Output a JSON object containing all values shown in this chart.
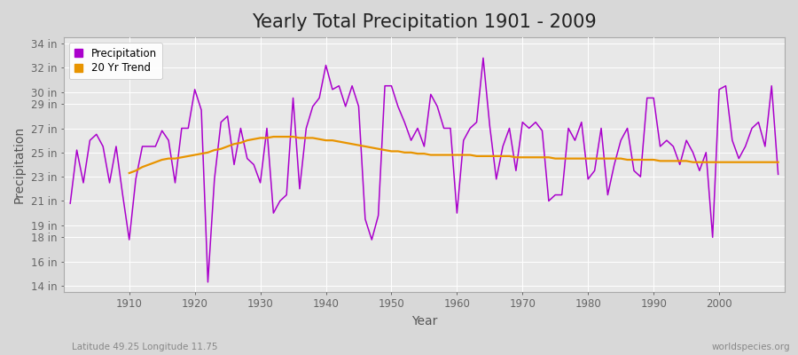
{
  "title": "Yearly Total Precipitation 1901 - 2009",
  "xlabel": "Year",
  "ylabel": "Precipitation",
  "subtitle_left": "Latitude 49.25 Longitude 11.75",
  "subtitle_right": "worldspecies.org",
  "years": [
    1901,
    1902,
    1903,
    1904,
    1905,
    1906,
    1907,
    1908,
    1909,
    1910,
    1911,
    1912,
    1913,
    1914,
    1915,
    1916,
    1917,
    1918,
    1919,
    1920,
    1921,
    1922,
    1923,
    1924,
    1925,
    1926,
    1927,
    1928,
    1929,
    1930,
    1931,
    1932,
    1933,
    1934,
    1935,
    1936,
    1937,
    1938,
    1939,
    1940,
    1941,
    1942,
    1943,
    1944,
    1945,
    1946,
    1947,
    1948,
    1949,
    1950,
    1951,
    1952,
    1953,
    1954,
    1955,
    1956,
    1957,
    1958,
    1959,
    1960,
    1961,
    1962,
    1963,
    1964,
    1965,
    1966,
    1967,
    1968,
    1969,
    1970,
    1971,
    1972,
    1973,
    1974,
    1975,
    1976,
    1977,
    1978,
    1979,
    1980,
    1981,
    1982,
    1983,
    1984,
    1985,
    1986,
    1987,
    1988,
    1989,
    1990,
    1991,
    1992,
    1993,
    1994,
    1995,
    1996,
    1997,
    1998,
    1999,
    2000,
    2001,
    2002,
    2003,
    2004,
    2005,
    2006,
    2007,
    2008,
    2009
  ],
  "precip": [
    20.8,
    25.2,
    22.5,
    26.0,
    26.5,
    25.5,
    22.5,
    25.5,
    21.5,
    17.8,
    22.8,
    25.5,
    25.5,
    25.5,
    26.8,
    26.0,
    22.5,
    27.0,
    27.0,
    30.2,
    28.5,
    14.3,
    22.8,
    27.5,
    28.0,
    24.0,
    27.0,
    24.5,
    24.0,
    22.5,
    27.0,
    20.0,
    21.0,
    21.5,
    29.5,
    22.0,
    27.0,
    28.8,
    29.5,
    32.2,
    30.2,
    30.5,
    28.8,
    30.5,
    28.8,
    19.5,
    17.8,
    19.8,
    30.5,
    30.5,
    28.8,
    27.5,
    26.0,
    27.0,
    25.5,
    29.8,
    28.8,
    27.0,
    27.0,
    20.0,
    26.0,
    27.0,
    27.5,
    32.8,
    27.2,
    22.8,
    25.5,
    27.0,
    23.5,
    27.5,
    27.0,
    27.5,
    26.8,
    21.0,
    21.5,
    21.5,
    27.0,
    26.0,
    27.5,
    22.8,
    23.5,
    27.0,
    21.5,
    24.0,
    26.0,
    27.0,
    23.5,
    23.0,
    29.5,
    29.5,
    25.5,
    26.0,
    25.5,
    24.0,
    26.0,
    25.0,
    23.5,
    25.0,
    18.0,
    30.2,
    30.5,
    26.0,
    24.5,
    25.5,
    27.0,
    27.5,
    25.5,
    30.5,
    23.2
  ],
  "trend_years": [
    1910,
    1911,
    1912,
    1913,
    1914,
    1915,
    1916,
    1917,
    1918,
    1919,
    1920,
    1921,
    1922,
    1923,
    1924,
    1925,
    1926,
    1927,
    1928,
    1929,
    1930,
    1931,
    1932,
    1933,
    1934,
    1935,
    1936,
    1937,
    1938,
    1939,
    1940,
    1941,
    1942,
    1943,
    1944,
    1945,
    1946,
    1947,
    1948,
    1949,
    1950,
    1951,
    1952,
    1953,
    1954,
    1955,
    1956,
    1957,
    1958,
    1959,
    1960,
    1961,
    1962,
    1963,
    1964,
    1965,
    1966,
    1967,
    1968,
    1969,
    1970,
    1971,
    1972,
    1973,
    1974,
    1975,
    1976,
    1977,
    1978,
    1979,
    1980,
    1981,
    1982,
    1983,
    1984,
    1985,
    1986,
    1987,
    1988,
    1989,
    1990,
    1991,
    1992,
    1993,
    1994,
    1995,
    1996,
    1997,
    1998,
    1999,
    2000,
    2001,
    2002,
    2003,
    2004,
    2005,
    2006,
    2007,
    2008,
    2009
  ],
  "trend": [
    23.3,
    23.5,
    23.8,
    24.0,
    24.2,
    24.4,
    24.5,
    24.5,
    24.6,
    24.7,
    24.8,
    24.9,
    25.0,
    25.2,
    25.3,
    25.5,
    25.7,
    25.8,
    26.0,
    26.1,
    26.2,
    26.2,
    26.3,
    26.3,
    26.3,
    26.3,
    26.2,
    26.2,
    26.2,
    26.1,
    26.0,
    26.0,
    25.9,
    25.8,
    25.7,
    25.6,
    25.5,
    25.4,
    25.3,
    25.2,
    25.1,
    25.1,
    25.0,
    25.0,
    24.9,
    24.9,
    24.8,
    24.8,
    24.8,
    24.8,
    24.8,
    24.8,
    24.8,
    24.7,
    24.7,
    24.7,
    24.7,
    24.7,
    24.7,
    24.6,
    24.6,
    24.6,
    24.6,
    24.6,
    24.6,
    24.5,
    24.5,
    24.5,
    24.5,
    24.5,
    24.5,
    24.5,
    24.5,
    24.5,
    24.5,
    24.5,
    24.4,
    24.4,
    24.4,
    24.4,
    24.4,
    24.3,
    24.3,
    24.3,
    24.3,
    24.3,
    24.2,
    24.2,
    24.2,
    24.2,
    24.2,
    24.2,
    24.2,
    24.2,
    24.2,
    24.2,
    24.2,
    24.2,
    24.2,
    24.2
  ],
  "precip_color": "#AA00CC",
  "trend_color": "#E89400",
  "bg_color": "#D8D8D8",
  "plot_bg_color": "#E8E8E8",
  "grid_color": "#FFFFFF",
  "ylim": [
    13.5,
    34.5
  ],
  "yticks": [
    14,
    16,
    18,
    19,
    21,
    23,
    25,
    27,
    29,
    30,
    32,
    34
  ],
  "ytick_labels": [
    "14 in",
    "16 in",
    "18 in",
    "19 in",
    "21 in",
    "23 in",
    "25 in",
    "27 in",
    "29 in",
    "30 in",
    "32 in",
    "34 in"
  ],
  "xticks": [
    1910,
    1920,
    1930,
    1940,
    1950,
    1960,
    1970,
    1980,
    1990,
    2000
  ],
  "title_fontsize": 15,
  "axis_label_fontsize": 10,
  "tick_fontsize": 8.5,
  "legend_fontsize": 8.5,
  "subtitle_fontsize": 7.5,
  "linewidth_precip": 1.1,
  "linewidth_trend": 1.6
}
